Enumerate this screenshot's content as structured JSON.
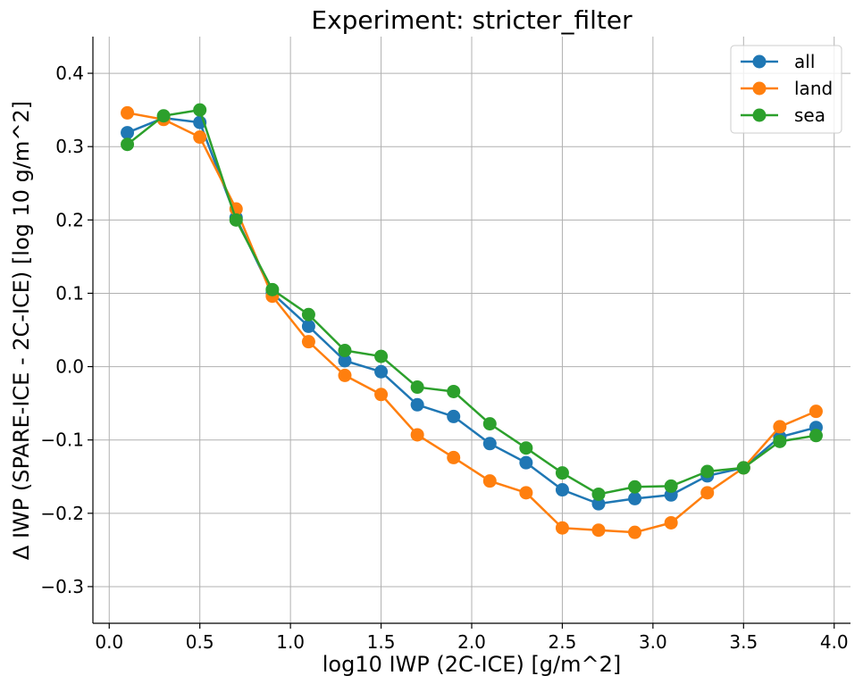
{
  "chart_data": {
    "type": "line",
    "title": "Experiment: stricter_filter",
    "xlabel": "log10 IWP (2C-ICE) [g/m^2]",
    "ylabel": "Δ IWP (SPARE-ICE - 2C-ICE) [log 10 g/m^2]",
    "xlim": [
      -0.09,
      4.09
    ],
    "ylim": [
      -0.35,
      0.45
    ],
    "x_ticks": [
      0.0,
      0.5,
      1.0,
      1.5,
      2.0,
      2.5,
      3.0,
      3.5,
      4.0
    ],
    "x_tick_labels": [
      "0.0",
      "0.5",
      "1.0",
      "1.5",
      "2.0",
      "2.5",
      "3.0",
      "3.5",
      "4.0"
    ],
    "y_ticks": [
      -0.3,
      -0.2,
      -0.1,
      0.0,
      0.1,
      0.2,
      0.3,
      0.4
    ],
    "y_tick_labels": [
      "−0.3",
      "−0.2",
      "−0.1",
      "0.0",
      "0.1",
      "0.2",
      "0.3",
      "0.4"
    ],
    "grid": true,
    "legend_position": "top-right",
    "x": [
      0.1,
      0.3,
      0.5,
      0.7,
      0.9,
      1.1,
      1.3,
      1.5,
      1.7,
      1.9,
      2.1,
      2.3,
      2.5,
      2.7,
      2.9,
      3.1,
      3.3,
      3.5,
      3.7,
      3.9
    ],
    "series": [
      {
        "name": "all",
        "color": "#1f77b4",
        "values": [
          0.319,
          0.339,
          0.333,
          0.203,
          0.1,
          0.055,
          0.008,
          -0.007,
          -0.052,
          -0.068,
          -0.105,
          -0.131,
          -0.168,
          -0.187,
          -0.18,
          -0.175,
          -0.149,
          -0.138,
          -0.096,
          -0.083
        ]
      },
      {
        "name": "land",
        "color": "#ff7f0e",
        "values": [
          0.346,
          0.337,
          0.313,
          0.215,
          0.096,
          0.034,
          -0.012,
          -0.038,
          -0.093,
          -0.124,
          -0.156,
          -0.172,
          -0.22,
          -0.223,
          -0.226,
          -0.213,
          -0.172,
          -0.138,
          -0.082,
          -0.061
        ]
      },
      {
        "name": "sea",
        "color": "#2ca02c",
        "values": [
          0.303,
          0.342,
          0.35,
          0.2,
          0.105,
          0.071,
          0.022,
          0.014,
          -0.028,
          -0.034,
          -0.078,
          -0.111,
          -0.145,
          -0.174,
          -0.164,
          -0.163,
          -0.143,
          -0.138,
          -0.102,
          -0.094
        ]
      }
    ]
  }
}
